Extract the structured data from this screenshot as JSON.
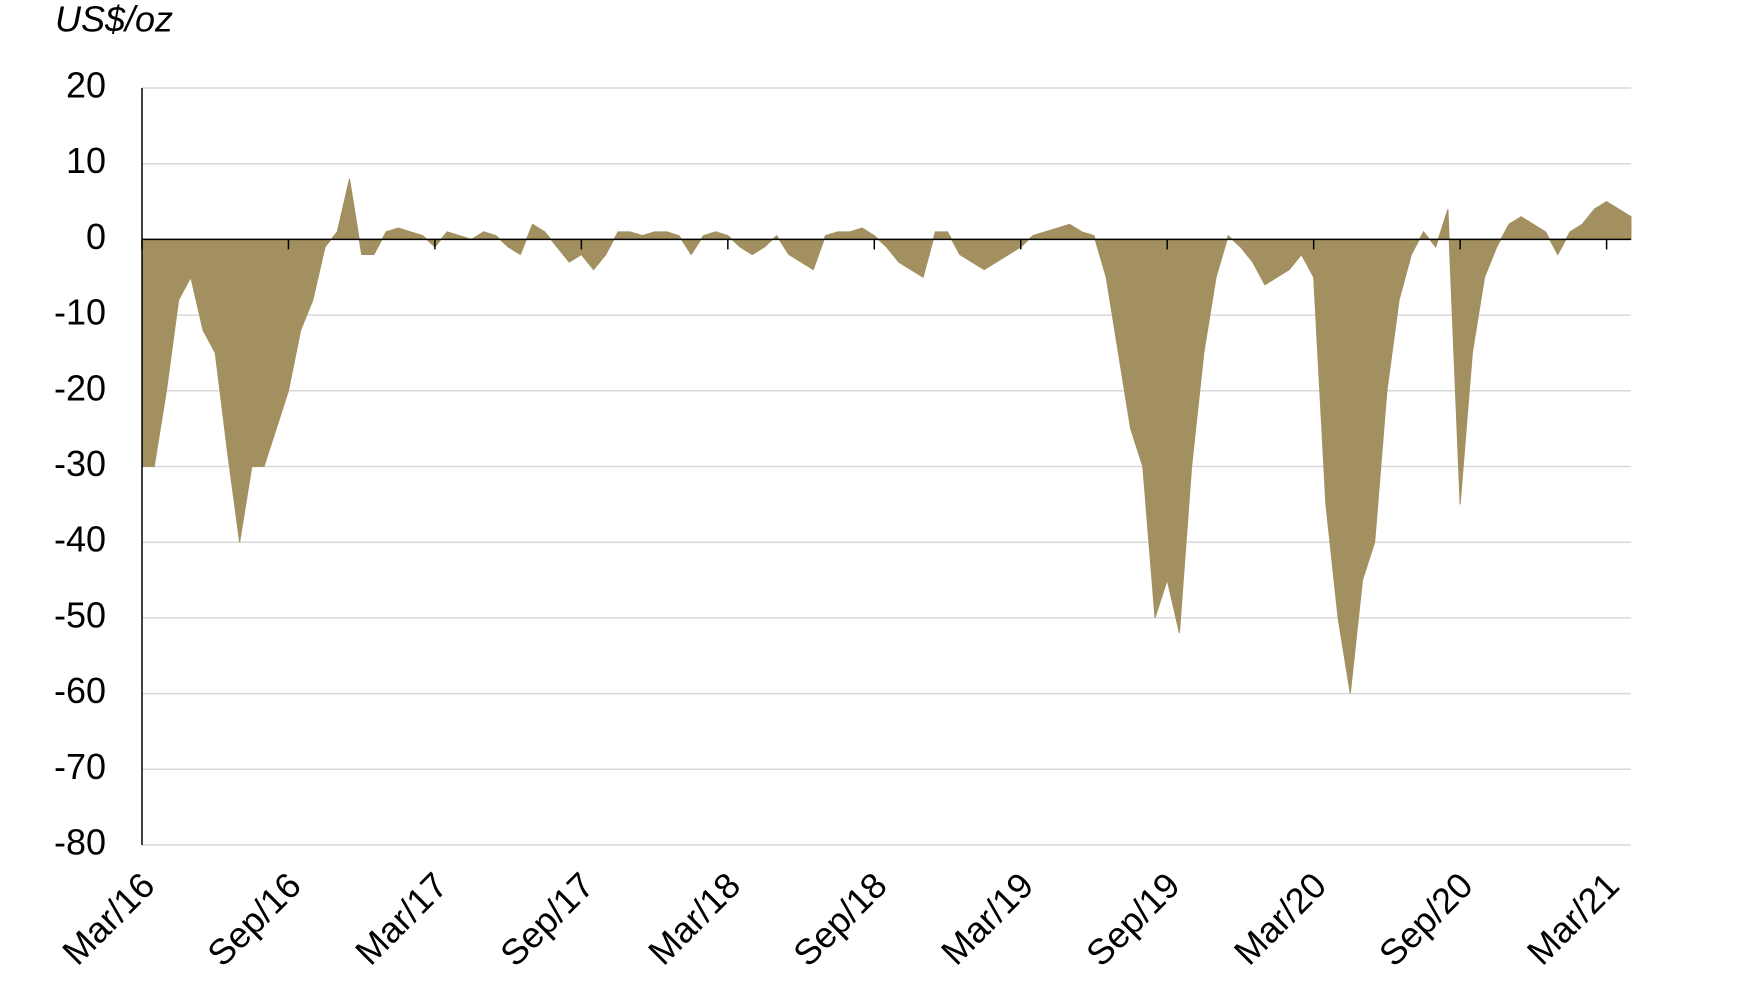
{
  "chart_data": {
    "type": "area",
    "title": "US$/oz",
    "categories": [
      "Mar/16",
      null,
      null,
      null,
      null,
      null,
      null,
      null,
      null,
      null,
      null,
      null,
      "Sep/16",
      null,
      null,
      null,
      null,
      null,
      null,
      null,
      null,
      null,
      null,
      null,
      "Mar/17",
      null,
      null,
      null,
      null,
      null,
      null,
      null,
      null,
      null,
      null,
      null,
      "Sep/17",
      null,
      null,
      null,
      null,
      null,
      null,
      null,
      null,
      null,
      null,
      null,
      "Mar/18",
      null,
      null,
      null,
      null,
      null,
      null,
      null,
      null,
      null,
      null,
      null,
      "Sep/18",
      null,
      null,
      null,
      null,
      null,
      null,
      null,
      null,
      null,
      null,
      null,
      "Mar/19",
      null,
      null,
      null,
      null,
      null,
      null,
      null,
      null,
      null,
      null,
      null,
      "Sep/19",
      null,
      null,
      null,
      null,
      null,
      null,
      null,
      null,
      null,
      null,
      null,
      "Mar/20",
      null,
      null,
      null,
      null,
      null,
      null,
      null,
      null,
      null,
      null,
      null,
      "Sep/20",
      null,
      null,
      null,
      null,
      null,
      null,
      null,
      null,
      null,
      null,
      null,
      "Mar/21",
      null,
      null
    ],
    "values": [
      -30,
      -30,
      -20,
      -8,
      -5,
      -12,
      -15,
      -28,
      -40,
      -30,
      -30,
      -25,
      -20,
      -12,
      -8,
      -1,
      1,
      8,
      -2,
      -2,
      1,
      1.5,
      1,
      0.5,
      -1,
      1,
      0.5,
      0,
      1,
      0.5,
      -1,
      -2,
      2,
      1,
      -1,
      -3,
      -2,
      -4,
      -2,
      1,
      1,
      0.5,
      1,
      1,
      0.5,
      -2,
      0.5,
      1,
      0.5,
      -1,
      -2,
      -1,
      0.5,
      -2,
      -3,
      -4,
      0.5,
      1,
      1,
      1.5,
      0.5,
      -1,
      -3,
      -4,
      -5,
      1,
      1,
      -2,
      -3,
      -4,
      -3,
      -2,
      -1,
      0.5,
      1,
      1.5,
      2,
      1,
      0.5,
      -5,
      -15,
      -25,
      -30,
      -50,
      -45,
      -52,
      -30,
      -15,
      -5,
      0.5,
      -1,
      -3,
      -6,
      -5,
      -4,
      -2,
      -5,
      -35,
      -50,
      -60,
      -45,
      -40,
      -20,
      -8,
      -2,
      1,
      -1,
      4,
      -35,
      -15,
      -5,
      -1,
      2,
      3,
      2,
      1,
      -2,
      1,
      2,
      4,
      5,
      4,
      3
    ],
    "color": "#a29060",
    "ylim": [
      -80,
      20
    ],
    "yticks": [
      -80,
      -70,
      -60,
      -50,
      -40,
      -30,
      -20,
      -10,
      0,
      10,
      20
    ],
    "grid": true
  }
}
